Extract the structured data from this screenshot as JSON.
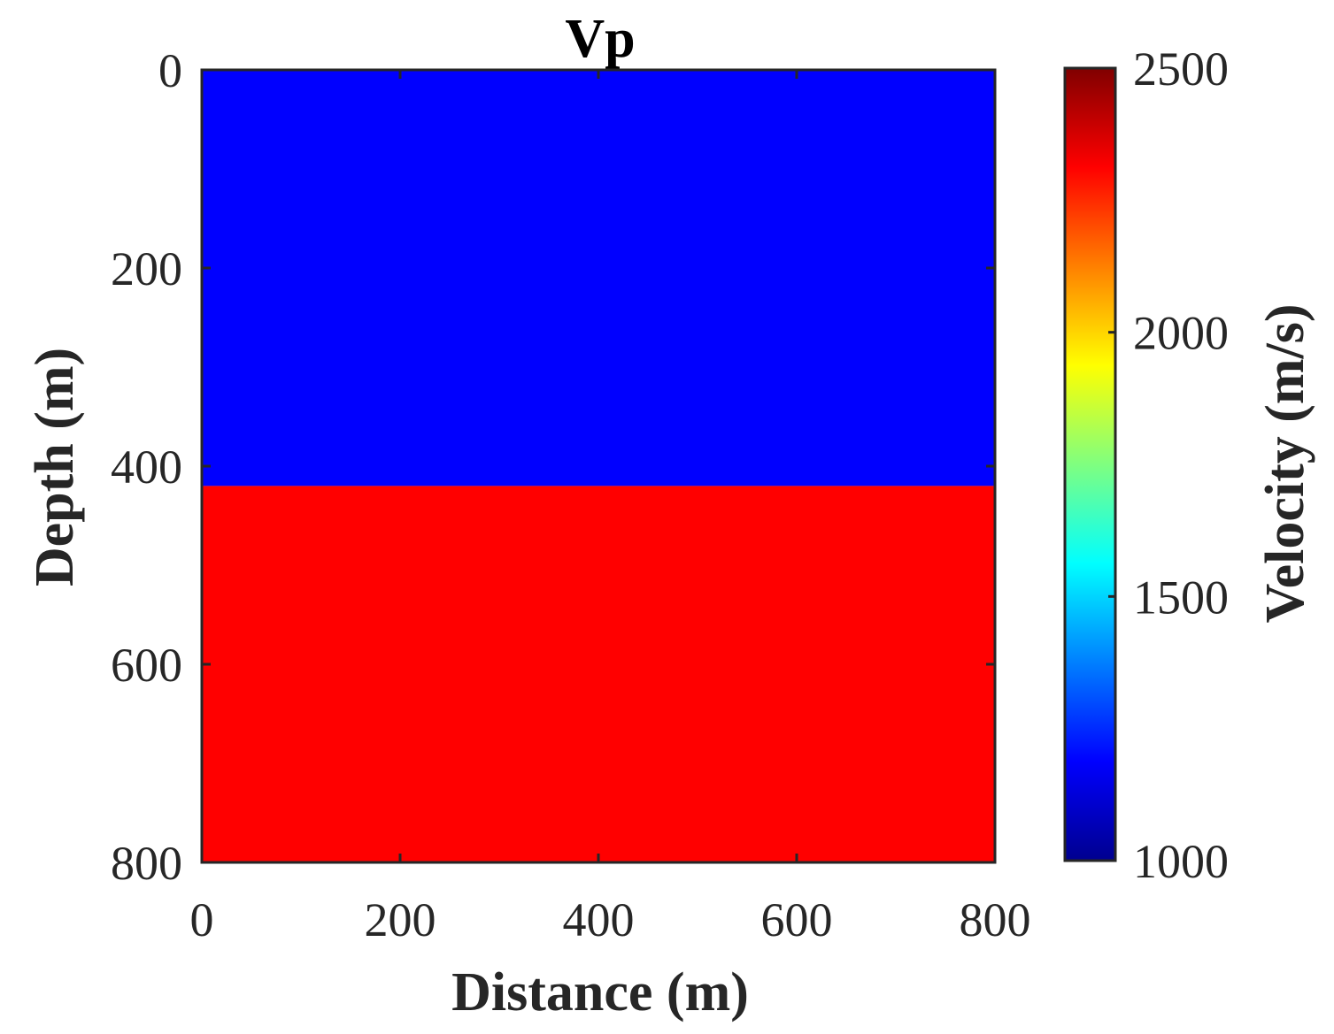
{
  "chart_data": {
    "type": "heatmap",
    "title": "Vp",
    "xlabel": "Distance (m)",
    "ylabel": "Depth (m)",
    "xlim": [
      0,
      800
    ],
    "ylim": [
      0,
      800
    ],
    "y_reversed": true,
    "x_ticks": [
      "0",
      "200",
      "400",
      "600",
      "800"
    ],
    "y_ticks": [
      "0",
      "200",
      "400",
      "600",
      "800"
    ],
    "layers": [
      {
        "depth_top": 0,
        "depth_bottom": 420,
        "velocity": 1200,
        "color": "#0000ff"
      },
      {
        "depth_top": 420,
        "depth_bottom": 800,
        "velocity": 2300,
        "color": "#ff0000"
      }
    ],
    "colorbar": {
      "label": "Velocity (m/s)",
      "range": [
        1000,
        2500
      ],
      "ticks": [
        "1000",
        "1500",
        "2000",
        "2500"
      ],
      "colormap": "jet"
    },
    "grid": false
  }
}
